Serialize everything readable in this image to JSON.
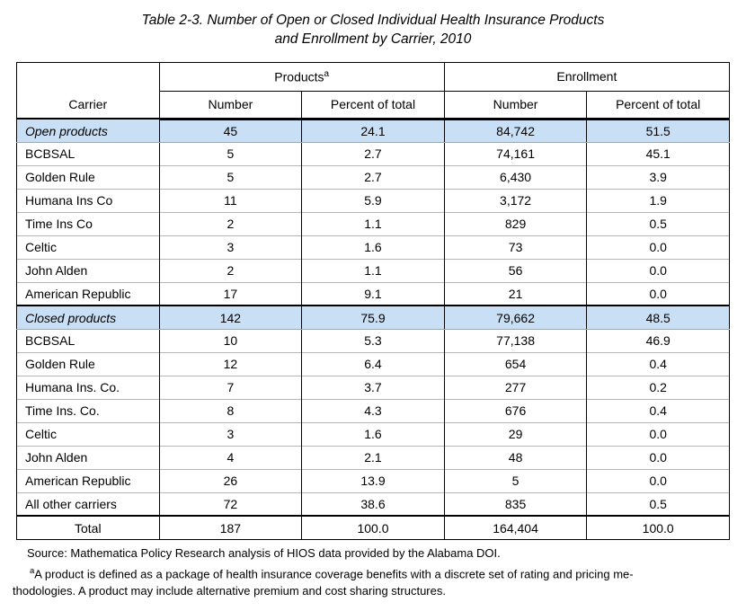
{
  "title": {
    "line1": "Table 2-3. Number of Open or Closed Individual Health Insurance Products",
    "line2": "and Enrollment by Carrier, 2010"
  },
  "table": {
    "header": {
      "carrier": "Carrier",
      "products_group": "Products",
      "products_superscript": "a",
      "enrollment_group": "Enrollment",
      "number_label": "Number",
      "percent_label": "Percent of total"
    },
    "rows": [
      {
        "type": "category",
        "carrier": "Open products",
        "p_number": "45",
        "p_pct": "24.1",
        "e_number": "84,742",
        "e_pct": "51.5"
      },
      {
        "type": "data",
        "carrier": "BCBSAL",
        "p_number": "5",
        "p_pct": "2.7",
        "e_number": "74,161",
        "e_pct": "45.1"
      },
      {
        "type": "data",
        "carrier": "Golden Rule",
        "p_number": "5",
        "p_pct": "2.7",
        "e_number": "6,430",
        "e_pct": "3.9"
      },
      {
        "type": "data",
        "carrier": "Humana Ins Co",
        "p_number": "11",
        "p_pct": "5.9",
        "e_number": "3,172",
        "e_pct": "1.9"
      },
      {
        "type": "data",
        "carrier": "Time Ins Co",
        "p_number": "2",
        "p_pct": "1.1",
        "e_number": "829",
        "e_pct": "0.5"
      },
      {
        "type": "data",
        "carrier": "Celtic",
        "p_number": "3",
        "p_pct": "1.6",
        "e_number": "73",
        "e_pct": "0.0"
      },
      {
        "type": "data",
        "carrier": "John Alden",
        "p_number": "2",
        "p_pct": "1.1",
        "e_number": "56",
        "e_pct": "0.0"
      },
      {
        "type": "data",
        "carrier": "American Republic",
        "p_number": "17",
        "p_pct": "9.1",
        "e_number": "21",
        "e_pct": "0.0"
      },
      {
        "type": "category",
        "carrier": "Closed products",
        "p_number": "142",
        "p_pct": "75.9",
        "e_number": "79,662",
        "e_pct": "48.5"
      },
      {
        "type": "data",
        "carrier": "BCBSAL",
        "p_number": "10",
        "p_pct": "5.3",
        "e_number": "77,138",
        "e_pct": "46.9"
      },
      {
        "type": "data",
        "carrier": "Golden Rule",
        "p_number": "12",
        "p_pct": "6.4",
        "e_number": "654",
        "e_pct": "0.4"
      },
      {
        "type": "data",
        "carrier": "Humana Ins. Co.",
        "p_number": "7",
        "p_pct": "3.7",
        "e_number": "277",
        "e_pct": "0.2"
      },
      {
        "type": "data",
        "carrier": "Time Ins. Co.",
        "p_number": "8",
        "p_pct": "4.3",
        "e_number": "676",
        "e_pct": "0.4"
      },
      {
        "type": "data",
        "carrier": "Celtic",
        "p_number": "3",
        "p_pct": "1.6",
        "e_number": "29",
        "e_pct": "0.0"
      },
      {
        "type": "data",
        "carrier": "John Alden",
        "p_number": "4",
        "p_pct": "2.1",
        "e_number": "48",
        "e_pct": "0.0"
      },
      {
        "type": "data",
        "carrier": "American Republic",
        "p_number": "26",
        "p_pct": "13.9",
        "e_number": "5",
        "e_pct": "0.0"
      },
      {
        "type": "data",
        "carrier": "All other carriers",
        "p_number": "72",
        "p_pct": "38.6",
        "e_number": "835",
        "e_pct": "0.5"
      },
      {
        "type": "total",
        "carrier": "Total",
        "p_number": "187",
        "p_pct": "100.0",
        "e_number": "164,404",
        "e_pct": "100.0"
      }
    ]
  },
  "notes": {
    "source": "Source: Mathematica Policy Research analysis of HIOS data provided by the Alabama DOI.",
    "footnote_marker": "a",
    "footnote_line1": "A product is defined as a package of health insurance coverage benefits with a discrete set of rating and pricing me-",
    "footnote_line2": "thodologies. A product may include alternative premium and cost sharing structures."
  },
  "colors": {
    "category_row_bg": "#c9dff5",
    "row_divider": "#b5b5b5",
    "border": "#000000"
  }
}
